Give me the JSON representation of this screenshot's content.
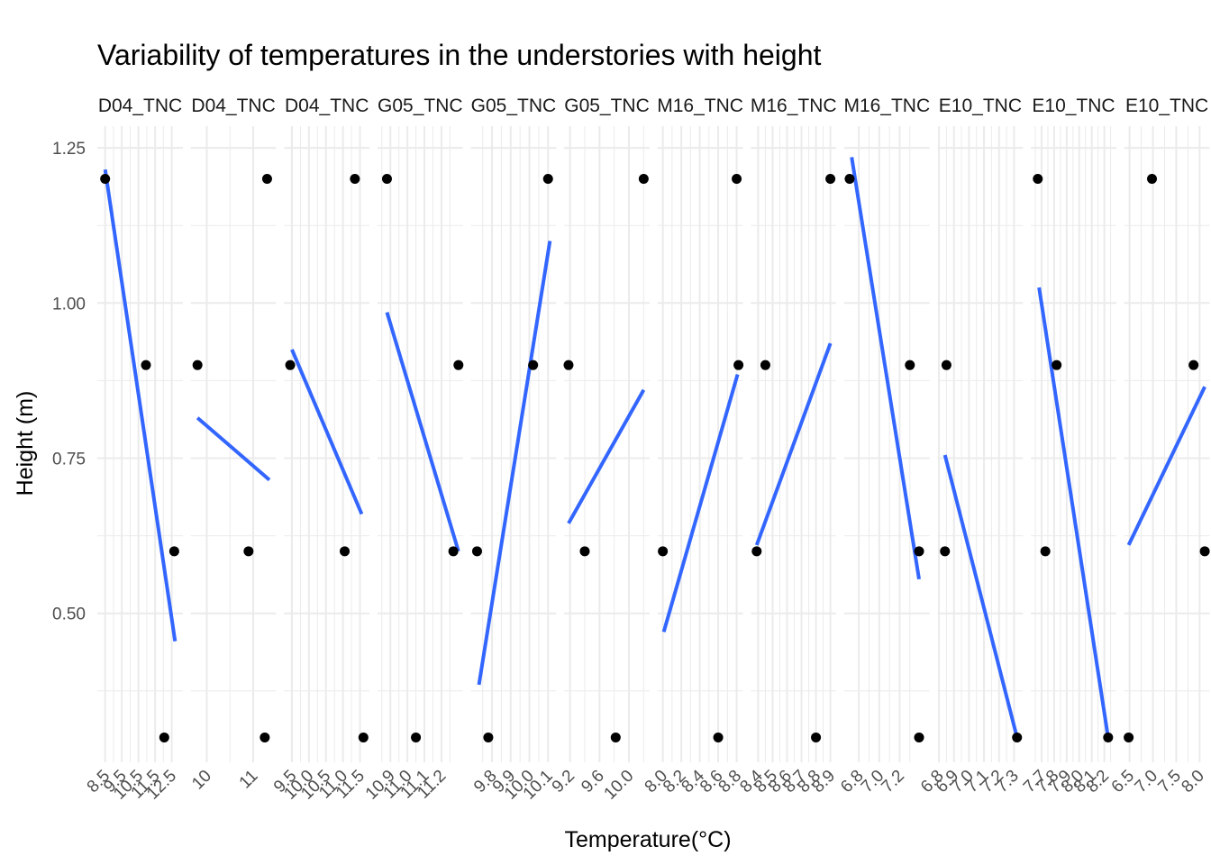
{
  "chart_data": {
    "type": "scatter",
    "title": "Variability of temperatures in the understories with height",
    "xlabel": "Temperature(°C)",
    "ylabel": "Height (m)",
    "ylim": [
      0.26,
      1.285
    ],
    "y_ticks": [
      0.5,
      0.75,
      1.0,
      1.25
    ],
    "y_tick_labels": [
      "0.50",
      "0.75",
      "1.00",
      "1.25"
    ],
    "grid": true,
    "facet_scales": "free_x",
    "colors": {
      "points": "#000000",
      "fit_line": "#3366ff",
      "grid": "#ebebeb"
    },
    "panels": [
      {
        "strip": "D04_TNC",
        "xlim": [
          8.3,
          12.9
        ],
        "x_ticks": [
          8.5,
          9.5,
          10.5,
          11.5,
          12.5
        ],
        "x_tick_labels": [
          "8.5",
          "9.5",
          "10.5",
          "11.5",
          "12.5"
        ],
        "points": [
          {
            "x": 8.5,
            "y": 1.2
          },
          {
            "x": 10.95,
            "y": 0.9
          },
          {
            "x": 12.65,
            "y": 0.6
          },
          {
            "x": 12.05,
            "y": 0.3
          }
        ],
        "fit": [
          {
            "x": 8.5,
            "y": 1.215
          },
          {
            "x": 12.7,
            "y": 0.455
          }
        ]
      },
      {
        "strip": "D04_TNC",
        "xlim": [
          9.75,
          11.4
        ],
        "x_ticks": [
          10,
          11
        ],
        "x_tick_labels": [
          "10",
          "11"
        ],
        "points": [
          {
            "x": 9.8,
            "y": 0.9
          },
          {
            "x": 11.3,
            "y": 1.2
          },
          {
            "x": 10.9,
            "y": 0.6
          },
          {
            "x": 11.25,
            "y": 0.3
          }
        ],
        "fit": [
          {
            "x": 9.8,
            "y": 0.815
          },
          {
            "x": 11.35,
            "y": 0.715
          }
        ]
      },
      {
        "strip": "D04_TNC",
        "xlim": [
          9.4,
          11.65
        ],
        "x_ticks": [
          9.5,
          10.0,
          10.5,
          11.0,
          11.5
        ],
        "x_tick_labels": [
          "9.5",
          "10.0",
          "10.5",
          "11.0",
          "11.5"
        ],
        "points": [
          {
            "x": 9.45,
            "y": 0.9
          },
          {
            "x": 11.35,
            "y": 1.2
          },
          {
            "x": 11.05,
            "y": 0.6
          },
          {
            "x": 11.6,
            "y": 0.3
          }
        ],
        "fit": [
          {
            "x": 9.5,
            "y": 0.925
          },
          {
            "x": 11.55,
            "y": 0.66
          }
        ]
      },
      {
        "strip": "G05_TNC",
        "xlim": [
          10.85,
          11.3
        ],
        "x_ticks": [
          10.9,
          11.0,
          11.1,
          11.2
        ],
        "x_tick_labels": [
          "10.9",
          "11.0",
          "11.1",
          "11.2"
        ],
        "points": [
          {
            "x": 10.88,
            "y": 1.2
          },
          {
            "x": 11.3,
            "y": 0.9
          },
          {
            "x": 11.27,
            "y": 0.6
          },
          {
            "x": 11.05,
            "y": 0.3
          }
        ],
        "fit": [
          {
            "x": 10.88,
            "y": 0.985
          },
          {
            "x": 11.3,
            "y": 0.6
          }
        ]
      },
      {
        "strip": "G05_TNC",
        "xlim": [
          9.71,
          10.12
        ],
        "x_ticks": [
          9.8,
          9.9,
          10.0,
          10.1
        ],
        "x_tick_labels": [
          "9.8",
          "9.9",
          "10.0",
          "10.1"
        ],
        "points": [
          {
            "x": 9.72,
            "y": 0.6
          },
          {
            "x": 9.78,
            "y": 0.3
          },
          {
            "x": 10.02,
            "y": 0.9
          },
          {
            "x": 10.1,
            "y": 1.2
          }
        ],
        "fit": [
          {
            "x": 9.73,
            "y": 0.385
          },
          {
            "x": 10.11,
            "y": 1.1
          }
        ]
      },
      {
        "strip": "G05_TNC",
        "xlim": [
          9.18,
          10.22
        ],
        "x_ticks": [
          9.2,
          9.6,
          10.0
        ],
        "x_tick_labels": [
          "9.2",
          "9.6",
          "10.0"
        ],
        "points": [
          {
            "x": 9.18,
            "y": 0.9
          },
          {
            "x": 10.2,
            "y": 1.2
          },
          {
            "x": 9.4,
            "y": 0.6
          },
          {
            "x": 9.82,
            "y": 0.3
          }
        ],
        "fit": [
          {
            "x": 9.18,
            "y": 0.645
          },
          {
            "x": 10.2,
            "y": 0.86
          }
        ]
      },
      {
        "strip": "M16_TNC",
        "xlim": [
          7.99,
          8.82
        ],
        "x_ticks": [
          8.0,
          8.2,
          8.4,
          8.6,
          8.8
        ],
        "x_tick_labels": [
          "8.0",
          "8.2",
          "8.4",
          "8.6",
          "8.8"
        ],
        "points": [
          {
            "x": 8.8,
            "y": 1.2
          },
          {
            "x": 8.82,
            "y": 0.9
          },
          {
            "x": 8.0,
            "y": 0.6
          },
          {
            "x": 8.6,
            "y": 0.3
          }
        ],
        "fit": [
          {
            "x": 8.01,
            "y": 0.47
          },
          {
            "x": 8.81,
            "y": 0.885
          }
        ]
      },
      {
        "strip": "M16_TNC",
        "xlim": [
          8.38,
          8.91
        ],
        "x_ticks": [
          8.4,
          8.5,
          8.6,
          8.7,
          8.8,
          8.9
        ],
        "x_tick_labels": [
          "8.4",
          "8.5",
          "8.6",
          "8.7",
          "8.8",
          "8.9"
        ],
        "points": [
          {
            "x": 8.9,
            "y": 1.2
          },
          {
            "x": 8.45,
            "y": 0.9
          },
          {
            "x": 8.39,
            "y": 0.6
          },
          {
            "x": 8.8,
            "y": 0.3
          }
        ],
        "fit": [
          {
            "x": 8.39,
            "y": 0.61
          },
          {
            "x": 8.9,
            "y": 0.935
          }
        ]
      },
      {
        "strip": "M16_TNC",
        "xlim": [
          6.7,
          7.45
        ],
        "x_ticks": [
          6.8,
          7.0,
          7.2
        ],
        "x_tick_labels": [
          "6.8",
          "7.0",
          "7.2"
        ],
        "points": [
          {
            "x": 6.71,
            "y": 1.2
          },
          {
            "x": 7.3,
            "y": 0.9
          },
          {
            "x": 7.39,
            "y": 0.6
          },
          {
            "x": 7.39,
            "y": 0.3
          }
        ],
        "fit": [
          {
            "x": 6.73,
            "y": 1.235
          },
          {
            "x": 7.39,
            "y": 0.555
          }
        ]
      },
      {
        "strip": "E10_TNC",
        "xlim": [
          6.82,
          7.33
        ],
        "x_ticks": [
          6.8,
          6.9,
          7.0,
          7.1,
          7.2,
          7.3
        ],
        "x_tick_labels": [
          "6.8",
          "6.9",
          "7.0",
          "7.1",
          "7.2",
          "7.3"
        ],
        "points": [
          {
            "x": 6.85,
            "y": 0.9
          },
          {
            "x": 6.84,
            "y": 0.6
          },
          {
            "x": 7.32,
            "y": 0.3
          }
        ],
        "fit": [
          {
            "x": 6.84,
            "y": 0.755
          },
          {
            "x": 7.32,
            "y": 0.3
          }
        ]
      },
      {
        "strip": "E10_TNC",
        "xlim": [
          7.65,
          8.26
        ],
        "x_ticks": [
          7.7,
          7.8,
          7.9,
          8.0,
          8.1,
          8.2
        ],
        "x_tick_labels": [
          "7.7",
          "7.8",
          "7.9",
          "8.0",
          "8.1",
          "8.2"
        ],
        "points": [
          {
            "x": 7.67,
            "y": 1.2
          },
          {
            "x": 7.82,
            "y": 0.9
          },
          {
            "x": 7.73,
            "y": 0.6
          },
          {
            "x": 8.23,
            "y": 0.3
          }
        ],
        "fit": [
          {
            "x": 7.68,
            "y": 1.025
          },
          {
            "x": 8.23,
            "y": 0.3
          }
        ]
      },
      {
        "strip": "E10_TNC",
        "xlim": [
          6.48,
          8.12
        ],
        "x_ticks": [
          6.5,
          7.0,
          7.5,
          8.0
        ],
        "x_tick_labels": [
          "6.5",
          "7.0",
          "7.5",
          "8.0"
        ],
        "points": [
          {
            "x": 6.48,
            "y": 0.3
          },
          {
            "x": 6.98,
            "y": 1.2
          },
          {
            "x": 7.87,
            "y": 0.9
          },
          {
            "x": 8.11,
            "y": 0.6
          }
        ],
        "fit": [
          {
            "x": 6.48,
            "y": 0.61
          },
          {
            "x": 8.11,
            "y": 0.865
          }
        ]
      }
    ]
  }
}
